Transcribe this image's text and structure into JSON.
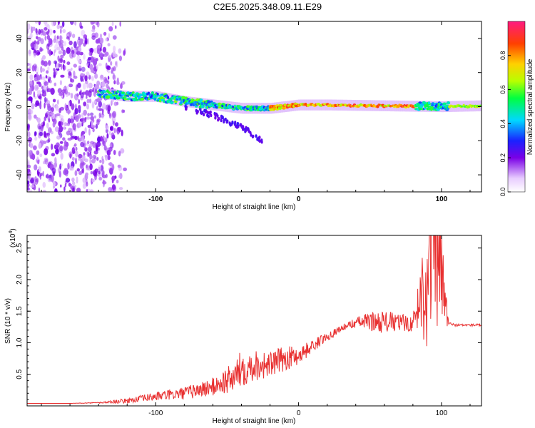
{
  "title": "C2E5.2025.348.09.11.E29",
  "chart_data": [
    {
      "type": "heatmap",
      "title": "C2E5.2025.348.09.11.E29",
      "xlabel": "Height of straight line (km)",
      "ylabel": "Frequency (Hz)",
      "xlim": [
        -190,
        128
      ],
      "ylim": [
        -50,
        50
      ],
      "xticks": [
        -100,
        0,
        100
      ],
      "yticks": [
        -40,
        -20,
        0,
        20,
        40
      ],
      "colorbar": {
        "label": "Normalized spectral amplitude",
        "range": [
          0.0,
          1.0
        ],
        "ticks": [
          "0.0",
          "0.2",
          "0.4",
          "0.6",
          "0.8"
        ]
      },
      "features": [
        {
          "name": "noise-region",
          "x_range": [
            -190,
            -120
          ],
          "freq_range": [
            -50,
            50
          ],
          "amplitude": 0.1
        },
        {
          "name": "main-trace",
          "points": [
            [
              -140,
              8
            ],
            [
              -120,
              6
            ],
            [
              -100,
              6
            ],
            [
              -80,
              3
            ],
            [
              -60,
              1
            ],
            [
              -40,
              -1
            ],
            [
              -20,
              -1
            ],
            [
              0,
              1
            ],
            [
              20,
              1
            ],
            [
              60,
              0.5
            ],
            [
              100,
              0
            ],
            [
              128,
              0.5
            ]
          ],
          "amplitude_range": [
            0.3,
            0.95
          ]
        },
        {
          "name": "descending-branch",
          "points": [
            [
              -80,
              0
            ],
            [
              -60,
              -5
            ],
            [
              -40,
              -12
            ],
            [
              -25,
              -20
            ]
          ],
          "amplitude": 0.2
        }
      ]
    },
    {
      "type": "line",
      "xlabel": "Height of straight line (km)",
      "ylabel": "SNR (10 * v/v)",
      "y_scale_label": "(x10",
      "y_scale_exponent": "4",
      "xlim": [
        -190,
        128
      ],
      "ylim": [
        0,
        27000
      ],
      "xticks": [
        -100,
        0,
        100
      ],
      "yticks": [
        0.5,
        1.0,
        1.5,
        2.0,
        2.5
      ],
      "ytick_labels": [
        "0.5",
        "1.0",
        "1.5",
        "2.0",
        "2.5"
      ],
      "series": [
        {
          "name": "SNR",
          "color": "#e83030",
          "envelope": {
            "x": [
              -190,
              -160,
              -140,
              -120,
              -100,
              -80,
              -60,
              -45,
              -40,
              -30,
              -20,
              -10,
              0,
              10,
              20,
              30,
              40,
              50,
              60,
              70,
              80,
              85,
              90,
              95,
              100,
              105,
              110,
              128
            ],
            "y": [
              400,
              400,
              500,
              800,
              1500,
              2000,
              3000,
              4500,
              6000,
              6500,
              6500,
              7500,
              8000,
              9500,
              11000,
              12300,
              13200,
              13400,
              13300,
              13200,
              13000,
              17000,
              21000,
              26000,
              20000,
              13000,
              12800,
              12800
            ],
            "oscillation": [
              0,
              0,
              100,
              400,
              700,
              1000,
              1500,
              2500,
              3000,
              2500,
              2000,
              2000,
              1500,
              1000,
              700,
              500,
              800,
              1500,
              1800,
              1500,
              1200,
              6000,
              12000,
              14000,
              9000,
              300,
              200,
              200
            ]
          }
        }
      ]
    }
  ],
  "colors": {
    "line": "#e83030",
    "axis": "#000000"
  }
}
